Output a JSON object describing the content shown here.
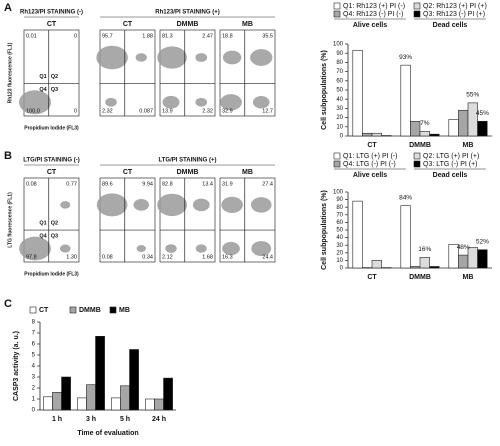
{
  "panel_letters": [
    "A",
    "B",
    "C"
  ],
  "flow_panels": [
    {
      "header_negative": "Rh123/PI STAINING (-)",
      "header_positive": "Rh123/PI STAINING (+)",
      "ylabel": "Rh123 fluorescence (FL1)",
      "xlabel": "Propidium Iodide (FL3)",
      "quadrant_labels": [
        "Q1",
        "Q2",
        "Q4",
        "Q3"
      ],
      "plots": [
        {
          "title": "CT",
          "quadrants": [
            "0.01",
            "0",
            "100.0",
            "0"
          ]
        },
        {
          "title": "CT",
          "quadrants": [
            "95.7",
            "1.88",
            "2.32",
            "0.087"
          ]
        },
        {
          "title": "DMMB",
          "quadrants": [
            "81.3",
            "2.47",
            "13.9",
            "2.32"
          ]
        },
        {
          "title": "MB",
          "quadrants": [
            "18.8",
            "35.5",
            "32.9",
            "12.7"
          ]
        }
      ]
    },
    {
      "header_negative": "LTG/PI STAINING (-)",
      "header_positive": "LTG/PI STAINING (+)",
      "ylabel": "LTG fluorescence (FL1)",
      "xlabel": "Propidium Iodide (FL3)",
      "quadrant_labels": [
        "Q1",
        "Q2",
        "Q4",
        "Q3"
      ],
      "plots": [
        {
          "title": "CT",
          "quadrants": [
            "0.08",
            "0.77",
            "97.8",
            "1.30"
          ]
        },
        {
          "title": "CT",
          "quadrants": [
            "89.6",
            "9.94",
            "0.08",
            "0.34"
          ]
        },
        {
          "title": "DMMB",
          "quadrants": [
            "82.8",
            "13.4",
            "2.12",
            "1.68"
          ]
        },
        {
          "title": "MB",
          "quadrants": [
            "31.9",
            "27.4",
            "16.3",
            "24.4"
          ]
        }
      ]
    }
  ],
  "chart_data": [
    {
      "type": "bar",
      "ylabel": "Cell subpopulations (%)",
      "categories": [
        "CT",
        "DMMB",
        "MB"
      ],
      "series": [
        {
          "name": "Q1: Rh123 (+) PI (-)",
          "color": "#ffffff",
          "values": [
            93,
            77,
            18
          ]
        },
        {
          "name": "Q4: Rh123 (-) PI (-)",
          "color": "#a6a6a6",
          "values": [
            3,
            16,
            28
          ]
        },
        {
          "name": "Q2: Rh123 (+) PI (+)",
          "color": "#dcdcdc",
          "values": [
            3,
            5,
            36
          ]
        },
        {
          "name": "Q3: Rh123 (-) PI (+)",
          "color": "#000000",
          "values": [
            0.5,
            2,
            16
          ]
        }
      ],
      "ylim": [
        0,
        100
      ],
      "yticks": [
        0,
        10,
        20,
        30,
        40,
        50,
        60,
        70,
        80,
        90,
        100
      ],
      "legend_groups": [
        "Alive cells",
        "Dead cells"
      ],
      "annotations": [
        "93%",
        "7%",
        "55%",
        "45%"
      ]
    },
    {
      "type": "bar",
      "ylabel": "Cell subpopulations (%)",
      "categories": [
        "CT",
        "DMMB",
        "MB"
      ],
      "series": [
        {
          "name": "Q1: LTG (+) PI (-)",
          "color": "#ffffff",
          "values": [
            88,
            82,
            31
          ]
        },
        {
          "name": "Q4: LTG (-) PI (-)",
          "color": "#a6a6a6",
          "values": [
            0.5,
            2,
            17
          ]
        },
        {
          "name": "Q2: LTG (+) PI (+)",
          "color": "#dcdcdc",
          "values": [
            10,
            14,
            27
          ]
        },
        {
          "name": "Q3: LTG (-) PI (+)",
          "color": "#000000",
          "values": [
            0.5,
            2,
            24
          ]
        }
      ],
      "ylim": [
        0,
        100
      ],
      "yticks": [
        0,
        10,
        20,
        30,
        40,
        50,
        60,
        70,
        80,
        90,
        100
      ],
      "legend_groups": [
        "Alive cells",
        "Dead cells"
      ],
      "annotations": [
        "84%",
        "16%",
        "48%",
        "52%"
      ]
    },
    {
      "type": "bar",
      "ylabel": "CASP3 activity (a. u.)",
      "xlabel": "Time of evaluation",
      "categories": [
        "1 h",
        "3 h",
        "5 h",
        "24 h"
      ],
      "series": [
        {
          "name": "CT",
          "color": "#ffffff",
          "values": [
            1.2,
            1.1,
            1.1,
            1.0
          ]
        },
        {
          "name": "DMMB",
          "color": "#a6a6a6",
          "values": [
            1.6,
            2.3,
            2.2,
            1.0
          ]
        },
        {
          "name": "MB",
          "color": "#000000",
          "values": [
            3.0,
            6.7,
            5.5,
            2.9
          ]
        }
      ],
      "ylim": [
        0,
        8
      ],
      "yticks": [
        0,
        1,
        2,
        3,
        4,
        5,
        6,
        7,
        8
      ]
    }
  ]
}
